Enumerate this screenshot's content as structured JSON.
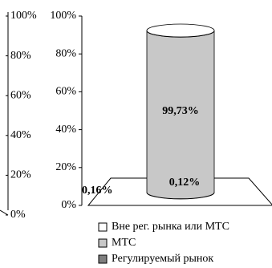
{
  "chart_data": [
    {
      "type": "axis",
      "ylim": [
        0,
        100
      ],
      "yticks": [
        {
          "value": 0,
          "label": "0%"
        },
        {
          "value": 20,
          "label": "20%"
        },
        {
          "value": 40,
          "label": "40%"
        },
        {
          "value": 60,
          "label": "60%"
        },
        {
          "value": 80,
          "label": "80%"
        },
        {
          "value": 100,
          "label": "100%"
        }
      ]
    },
    {
      "type": "cylinder",
      "categories": [
        null
      ],
      "series": [
        {
          "name": "Регулируемый рынок",
          "color": "#7f7f7f",
          "values": [
            0.16
          ],
          "value_labels": [
            "0,16%"
          ]
        },
        {
          "name": "МТС",
          "color": "#c8c8c8",
          "values": [
            99.73
          ],
          "value_labels": [
            "99,73%"
          ]
        },
        {
          "name": "Вне рег. рынка или МТС",
          "color": "#ffffff",
          "values": [
            0.12
          ],
          "value_labels": [
            "0,12%"
          ]
        }
      ],
      "ylim": [
        0,
        100
      ],
      "yticks": [
        {
          "value": 0,
          "label": "0%"
        },
        {
          "value": 20,
          "label": "20%"
        },
        {
          "value": 40,
          "label": "40%"
        },
        {
          "value": 60,
          "label": "60%"
        },
        {
          "value": 80,
          "label": "80%"
        },
        {
          "value": 100,
          "label": "100%"
        }
      ]
    }
  ]
}
